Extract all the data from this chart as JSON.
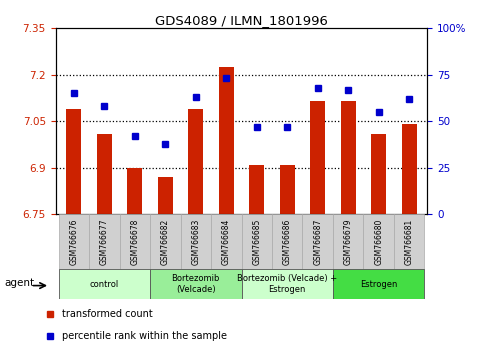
{
  "title": "GDS4089 / ILMN_1801996",
  "samples": [
    "GSM766676",
    "GSM766677",
    "GSM766678",
    "GSM766682",
    "GSM766683",
    "GSM766684",
    "GSM766685",
    "GSM766686",
    "GSM766687",
    "GSM766679",
    "GSM766680",
    "GSM766681"
  ],
  "bar_values": [
    7.09,
    7.01,
    6.9,
    6.87,
    7.09,
    7.225,
    6.91,
    6.91,
    7.115,
    7.115,
    7.01,
    7.04
  ],
  "dot_values": [
    65,
    58,
    42,
    38,
    63,
    73,
    47,
    47,
    68,
    67,
    55,
    62
  ],
  "ylim_left": [
    6.75,
    7.35
  ],
  "ylim_right": [
    0,
    100
  ],
  "yticks_left": [
    6.75,
    6.9,
    7.05,
    7.2,
    7.35
  ],
  "yticks_right": [
    0,
    25,
    50,
    75,
    100
  ],
  "ytick_labels_left": [
    "6.75",
    "6.9",
    "7.05",
    "7.2",
    "7.35"
  ],
  "ytick_labels_right": [
    "0",
    "25",
    "50",
    "75",
    "100%"
  ],
  "hlines": [
    6.9,
    7.05,
    7.2
  ],
  "groups": [
    {
      "label": "control",
      "start": 0,
      "end": 3,
      "color": "#ccffcc"
    },
    {
      "label": "Bortezomib\n(Velcade)",
      "start": 3,
      "end": 6,
      "color": "#99ee99"
    },
    {
      "label": "Bortezomib (Velcade) +\nEstrogen",
      "start": 6,
      "end": 9,
      "color": "#ccffcc"
    },
    {
      "label": "Estrogen",
      "start": 9,
      "end": 12,
      "color": "#44dd44"
    }
  ],
  "bar_color": "#cc2200",
  "dot_color": "#0000cc",
  "bar_baseline": 6.75,
  "legend_red_label": "transformed count",
  "legend_blue_label": "percentile rank within the sample",
  "agent_label": "agent",
  "left_tick_color": "#cc2200",
  "right_tick_color": "#0000cc"
}
